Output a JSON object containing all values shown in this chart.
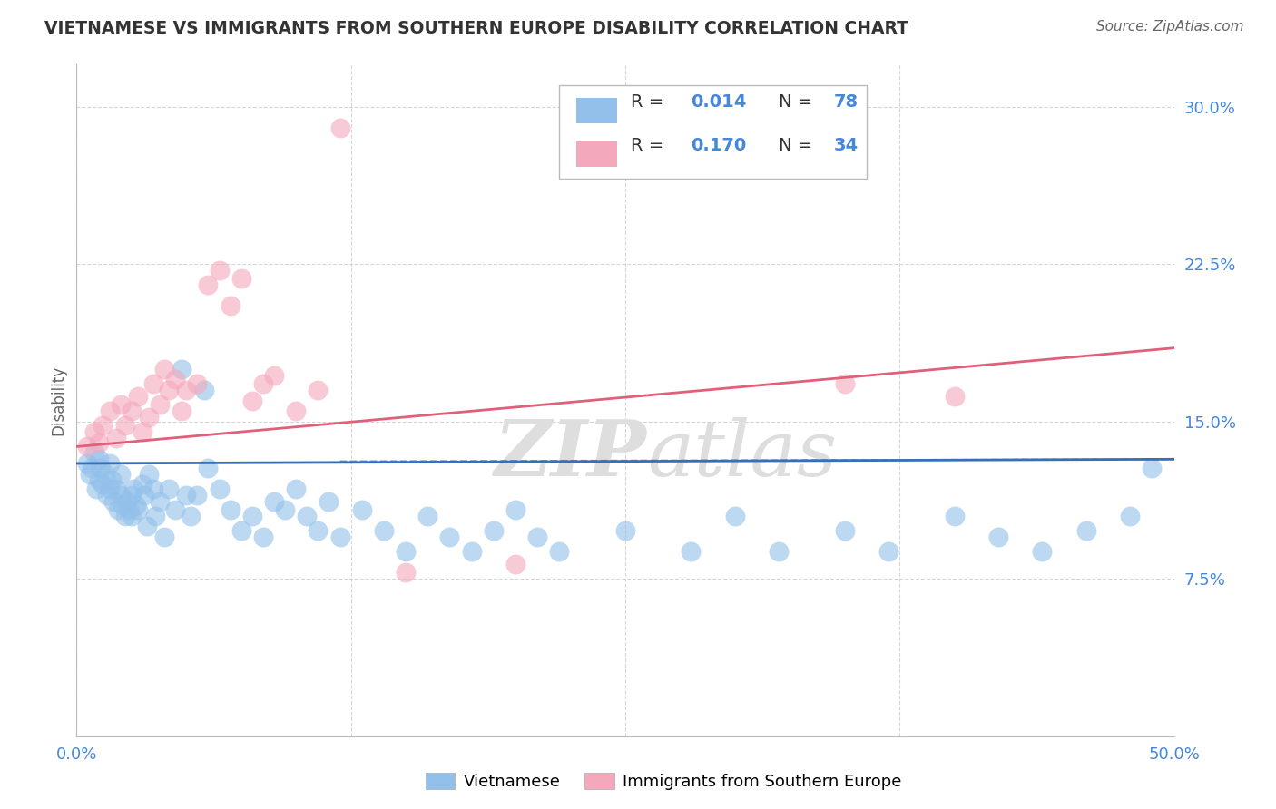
{
  "title": "VIETNAMESE VS IMMIGRANTS FROM SOUTHERN EUROPE DISABILITY CORRELATION CHART",
  "source": "Source: ZipAtlas.com",
  "ylabel": "Disability",
  "xlim": [
    0.0,
    0.5
  ],
  "ylim": [
    0.0,
    0.32
  ],
  "ytick_vals": [
    0.075,
    0.15,
    0.225,
    0.3
  ],
  "ytick_labels": [
    "7.5%",
    "15.0%",
    "22.5%",
    "30.0%"
  ],
  "xtick_vals": [
    0.0,
    0.125,
    0.25,
    0.375,
    0.5
  ],
  "xtick_labels": [
    "0.0%",
    "",
    "",
    "",
    "50.0%"
  ],
  "color_blue": "#92C0EA",
  "color_pink": "#F4A8BC",
  "line_color_blue": "#3670B8",
  "line_color_pink": "#E0607A",
  "watermark": "ZIPatlas",
  "background_color": "#FFFFFF",
  "grid_color": "#CCCCCC",
  "title_color": "#333333",
  "axis_label_color": "#4488DD",
  "legend_text_color": "#333333",
  "blue_x": [
    0.005,
    0.006,
    0.007,
    0.008,
    0.009,
    0.01,
    0.01,
    0.011,
    0.012,
    0.013,
    0.014,
    0.015,
    0.015,
    0.016,
    0.017,
    0.018,
    0.019,
    0.02,
    0.02,
    0.021,
    0.022,
    0.023,
    0.024,
    0.025,
    0.025,
    0.026,
    0.027,
    0.028,
    0.03,
    0.031,
    0.032,
    0.033,
    0.035,
    0.036,
    0.038,
    0.04,
    0.042,
    0.045,
    0.048,
    0.05,
    0.052,
    0.055,
    0.058,
    0.06,
    0.065,
    0.07,
    0.075,
    0.08,
    0.085,
    0.09,
    0.095,
    0.1,
    0.105,
    0.11,
    0.115,
    0.12,
    0.13,
    0.14,
    0.15,
    0.16,
    0.17,
    0.18,
    0.19,
    0.2,
    0.21,
    0.22,
    0.25,
    0.28,
    0.3,
    0.32,
    0.35,
    0.37,
    0.4,
    0.42,
    0.44,
    0.46,
    0.48,
    0.49
  ],
  "blue_y": [
    0.13,
    0.125,
    0.128,
    0.135,
    0.118,
    0.132,
    0.122,
    0.128,
    0.12,
    0.125,
    0.115,
    0.13,
    0.118,
    0.122,
    0.112,
    0.118,
    0.108,
    0.115,
    0.125,
    0.11,
    0.105,
    0.112,
    0.108,
    0.115,
    0.105,
    0.118,
    0.11,
    0.108,
    0.12,
    0.115,
    0.1,
    0.125,
    0.118,
    0.105,
    0.112,
    0.095,
    0.118,
    0.108,
    0.175,
    0.115,
    0.105,
    0.115,
    0.165,
    0.128,
    0.118,
    0.108,
    0.098,
    0.105,
    0.095,
    0.112,
    0.108,
    0.118,
    0.105,
    0.098,
    0.112,
    0.095,
    0.108,
    0.098,
    0.088,
    0.105,
    0.095,
    0.088,
    0.098,
    0.108,
    0.095,
    0.088,
    0.098,
    0.088,
    0.105,
    0.088,
    0.098,
    0.088,
    0.105,
    0.095,
    0.088,
    0.098,
    0.105,
    0.128
  ],
  "pink_x": [
    0.005,
    0.008,
    0.01,
    0.012,
    0.015,
    0.018,
    0.02,
    0.022,
    0.025,
    0.028,
    0.03,
    0.033,
    0.035,
    0.038,
    0.04,
    0.042,
    0.045,
    0.048,
    0.05,
    0.055,
    0.06,
    0.065,
    0.07,
    0.075,
    0.08,
    0.085,
    0.09,
    0.1,
    0.11,
    0.12,
    0.15,
    0.2,
    0.35,
    0.4
  ],
  "pink_y": [
    0.138,
    0.145,
    0.14,
    0.148,
    0.155,
    0.142,
    0.158,
    0.148,
    0.155,
    0.162,
    0.145,
    0.152,
    0.168,
    0.158,
    0.175,
    0.165,
    0.17,
    0.155,
    0.165,
    0.168,
    0.215,
    0.222,
    0.205,
    0.218,
    0.16,
    0.168,
    0.172,
    0.155,
    0.165,
    0.29,
    0.078,
    0.082,
    0.168,
    0.162
  ],
  "blue_line_x": [
    0.0,
    0.5
  ],
  "blue_line_y": [
    0.13,
    0.132
  ],
  "pink_line_x": [
    0.0,
    0.5
  ],
  "pink_line_y": [
    0.138,
    0.185
  ]
}
